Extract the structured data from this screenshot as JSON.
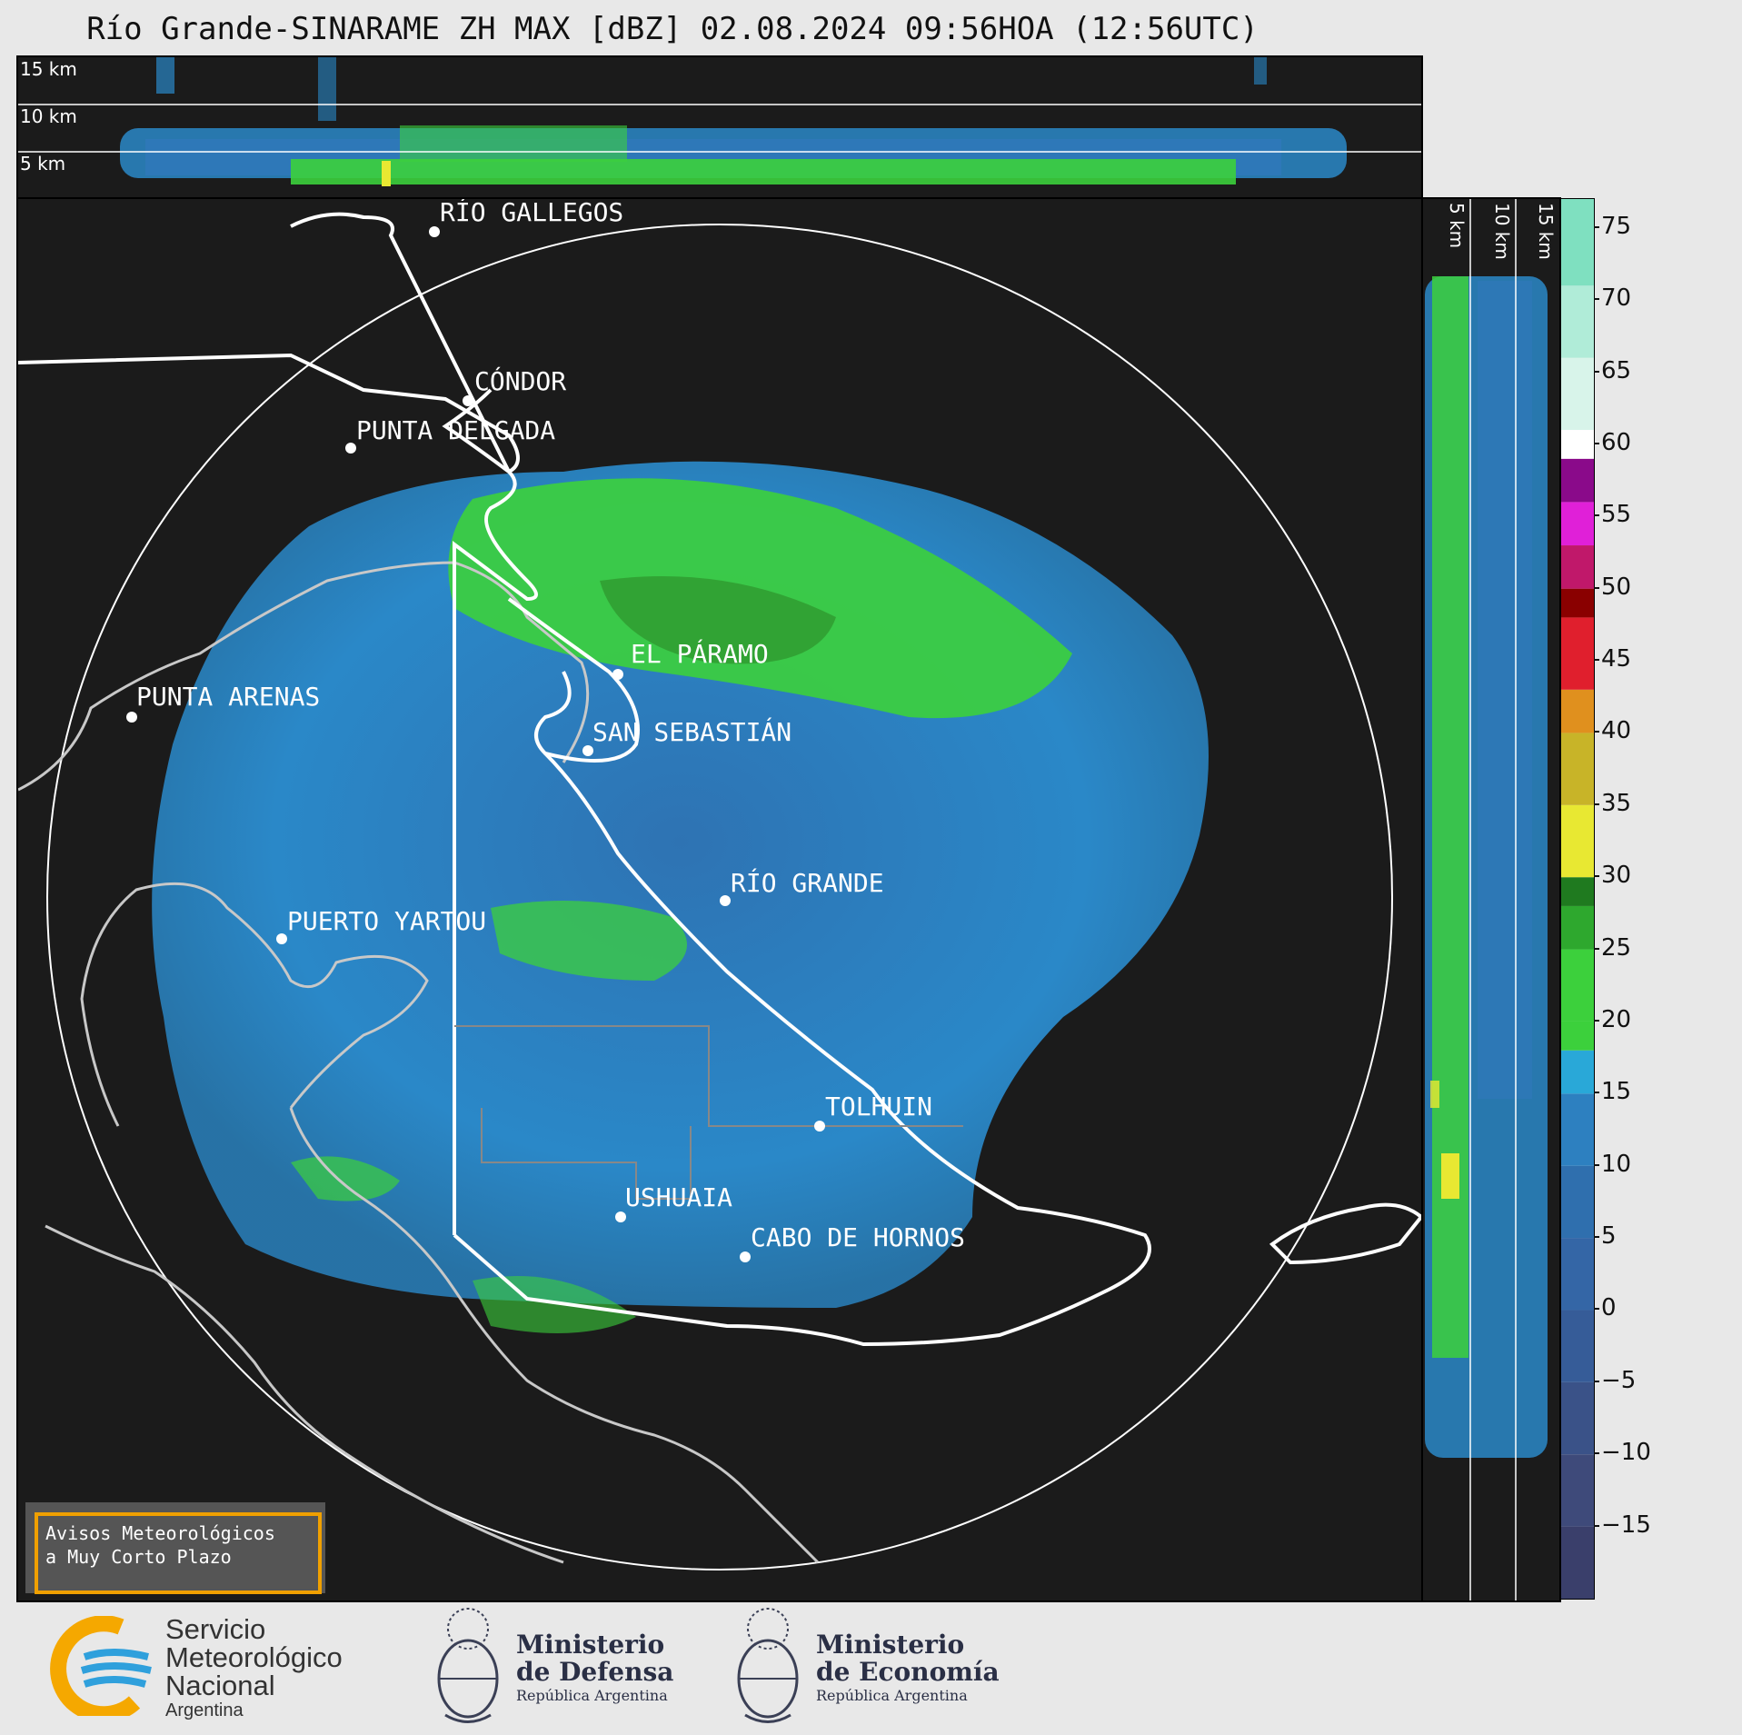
{
  "title": "Río Grande-SINARAME ZH MAX [dBZ] 02.08.2024 09:56HOA (12:56UTC)",
  "top_panel": {
    "altitude_labels": [
      "15 km",
      "10 km",
      "5 km"
    ]
  },
  "side_panel": {
    "altitude_labels": [
      "5 km",
      "10 km",
      "15 km"
    ]
  },
  "cities": [
    {
      "name": "RÍO GALLEGOS"
    },
    {
      "name": "CÓNDOR"
    },
    {
      "name": "PUNTA DELGADA"
    },
    {
      "name": "EL PÁRAMO"
    },
    {
      "name": "PUNTA ARENAS"
    },
    {
      "name": "SAN SEBASTIÁN"
    },
    {
      "name": "RÍO GRANDE"
    },
    {
      "name": "PUERTO YARTOU"
    },
    {
      "name": "TOLHUIN"
    },
    {
      "name": "USHUAIA"
    },
    {
      "name": "CABO DE HORNOS"
    }
  ],
  "colorbar": {
    "unit": "dBZ",
    "range": [
      -20,
      77
    ],
    "ticks": [
      "75",
      "70",
      "65",
      "60",
      "55",
      "50",
      "45",
      "40",
      "35",
      "30",
      "25",
      "20",
      "15",
      "10",
      "5",
      "0",
      "−5",
      "−10",
      "−15"
    ],
    "colors": {
      "blue_low": "#3a3f6b",
      "blue_mid": "#2f6fae",
      "cyan": "#29a8d8",
      "green": "#3cd03c",
      "dark_green": "#1f7a1f",
      "yellow": "#e8e832",
      "orange": "#e0901e",
      "red": "#e01f2d",
      "dark_red": "#8a0000",
      "magenta": "#e020d8",
      "purple": "#8a0a8a",
      "white": "#ffffff",
      "teal": "#7fe0c0"
    }
  },
  "avisos": {
    "line1": "Avisos Meteorológicos",
    "line2": "a Muy Corto Plazo"
  },
  "logos": {
    "smn": {
      "line1": "Servicio",
      "line2": "Meteorológico",
      "line3": "Nacional",
      "line4": "Argentina",
      "icon": "smn-logo-icon"
    },
    "defensa": {
      "line1": "Ministerio",
      "line2": "de Defensa",
      "line3": "República Argentina",
      "icon": "coat-of-arms-icon"
    },
    "economia": {
      "line1": "Ministerio",
      "line2": "de Economía",
      "line3": "República Argentina",
      "icon": "coat-of-arms-icon"
    }
  }
}
